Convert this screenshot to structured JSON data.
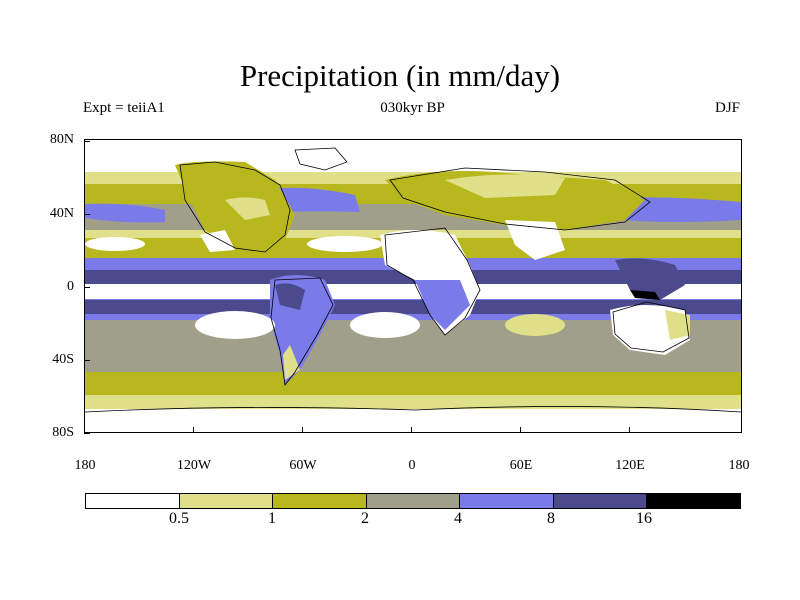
{
  "title": "Precipitation (in mm/day)",
  "subtitle_left": "Expt = teiiA1",
  "subtitle_center": "030kyr BP",
  "subtitle_right": "DJF",
  "lat_labels": [
    "80N",
    "40N",
    "0",
    "40S",
    "80S"
  ],
  "lon_labels": [
    "180",
    "120W",
    "60W",
    "0",
    "60E",
    "120E",
    "180"
  ],
  "colorbar": {
    "colors": [
      "#ffffff",
      "#e0e08a",
      "#b8b81e",
      "#a0a08a",
      "#7a7ae8",
      "#4a4a8c",
      "#000000"
    ],
    "labels": [
      "0.5",
      "1",
      "2",
      "4",
      "8",
      "16"
    ]
  },
  "chart_data": {
    "type": "heatmap",
    "title": "Precipitation (in mm/day)",
    "experiment": "teiiA1",
    "period": "030kyr BP",
    "season": "DJF",
    "lon_range": [
      -180,
      180
    ],
    "lat_range": [
      -90,
      90
    ],
    "contour_levels": [
      0.5,
      1,
      2,
      4,
      8,
      16
    ],
    "units": "mm/day"
  }
}
